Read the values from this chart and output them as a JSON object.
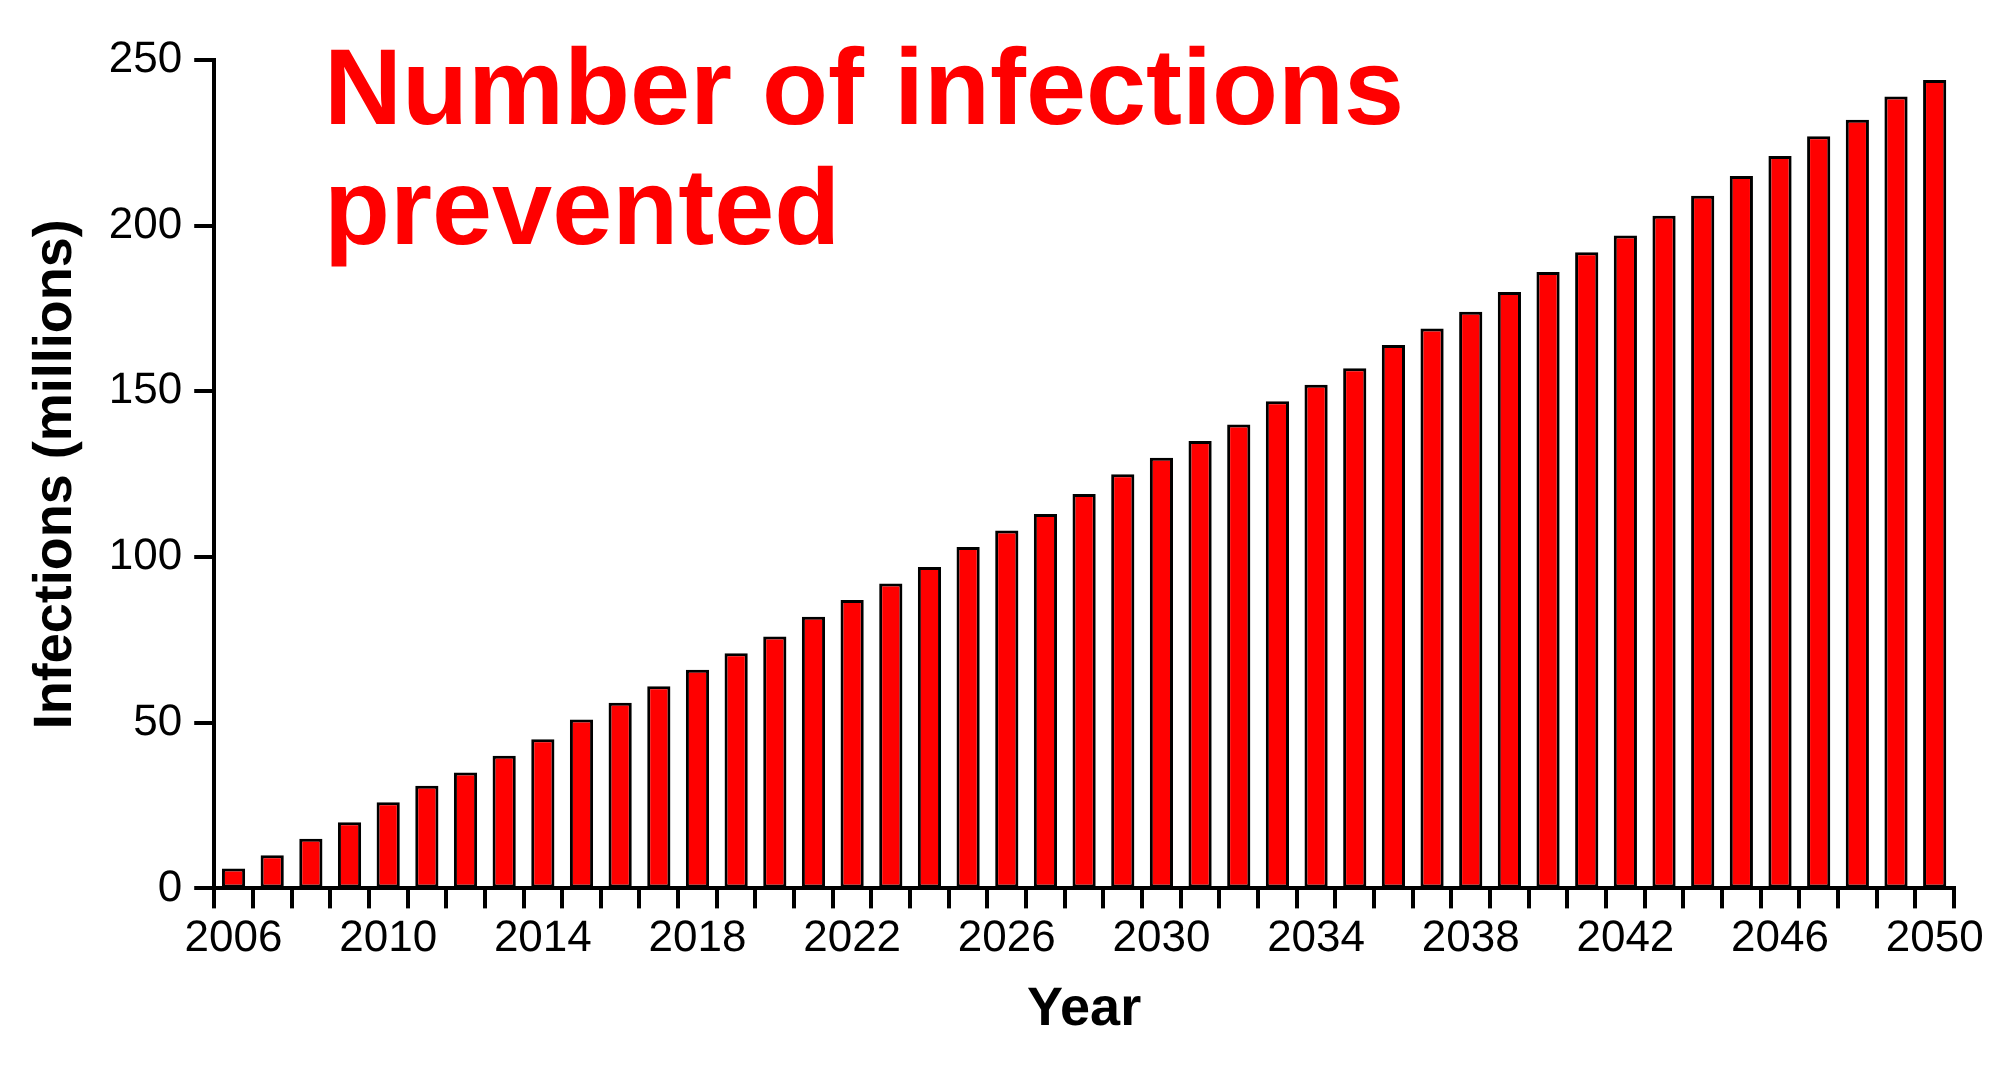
{
  "chart_data": {
    "type": "bar",
    "title": "Number of infections prevented",
    "xlabel": "Year",
    "ylabel": "Infections (millions)",
    "categories": [
      "2006",
      null,
      null,
      null,
      "2010",
      null,
      null,
      null,
      "2014",
      null,
      null,
      null,
      "2018",
      null,
      null,
      null,
      "2022",
      null,
      null,
      null,
      "2026",
      null,
      null,
      null,
      "2030",
      null,
      null,
      null,
      "2034",
      null,
      null,
      null,
      "2038",
      null,
      null,
      null,
      "2042",
      null,
      null,
      null,
      "2046",
      null,
      null,
      null,
      "2050"
    ],
    "values": [
      6,
      10,
      15,
      20,
      26,
      31,
      35,
      40,
      45,
      51,
      56,
      61,
      66,
      71,
      76,
      82,
      87,
      92,
      97,
      103,
      108,
      113,
      119,
      125,
      130,
      135,
      140,
      147,
      152,
      157,
      164,
      169,
      174,
      180,
      186,
      192,
      197,
      203,
      209,
      215,
      221,
      227,
      232,
      239,
      244
    ],
    "color": "#ff0000",
    "ylim": [
      0,
      250
    ],
    "yticks": [
      0,
      50,
      100,
      150,
      200,
      250
    ],
    "grid": false,
    "legend": false
  }
}
